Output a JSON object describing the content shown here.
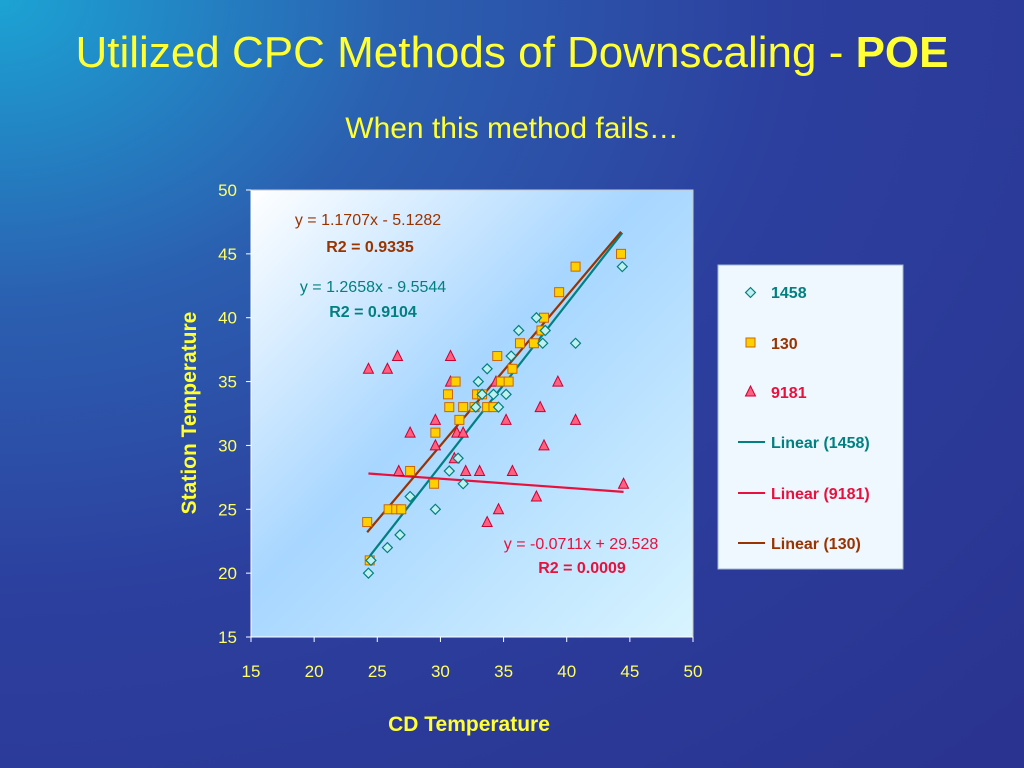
{
  "slide": {
    "title_main": "Utilized CPC Methods of Downscaling - ",
    "title_bold": "POE",
    "subtitle": "When this method fails…"
  },
  "colors": {
    "title": "#ffff33",
    "s1458": "#008080",
    "s130": "#993300",
    "s9181": "#e8103c",
    "plot_bg_start": "#ffffff",
    "plot_bg_end": "#9fd4ff",
    "legend_bg": "#f0f8ff"
  },
  "chart_data": {
    "type": "scatter",
    "xlabel": "CD Temperature",
    "ylabel": "Station Temperature",
    "xlim": [
      15,
      50
    ],
    "ylim": [
      15,
      50
    ],
    "x_ticks": [
      15,
      20,
      25,
      30,
      35,
      40,
      45,
      50
    ],
    "y_ticks": [
      15,
      20,
      25,
      30,
      35,
      40,
      45,
      50
    ],
    "grid": false,
    "legend_position": "right",
    "series": [
      {
        "name": "1458",
        "marker": "diamond",
        "color": "#008080",
        "points": [
          [
            24.3,
            20
          ],
          [
            24.5,
            21
          ],
          [
            25.8,
            22
          ],
          [
            26.8,
            23
          ],
          [
            27.6,
            26
          ],
          [
            29.6,
            25
          ],
          [
            30.7,
            28
          ],
          [
            31.4,
            29
          ],
          [
            31.8,
            27
          ],
          [
            32.8,
            33
          ],
          [
            33.0,
            35
          ],
          [
            33.3,
            34
          ],
          [
            33.7,
            36
          ],
          [
            34.2,
            34
          ],
          [
            34.6,
            33
          ],
          [
            35.2,
            34
          ],
          [
            35.6,
            37
          ],
          [
            36.2,
            39
          ],
          [
            37.6,
            40
          ],
          [
            38.1,
            38
          ],
          [
            38.3,
            39
          ],
          [
            40.7,
            38
          ],
          [
            44.4,
            44
          ]
        ]
      },
      {
        "name": "130",
        "marker": "square",
        "color": "#ffb000",
        "points": [
          [
            24.2,
            24
          ],
          [
            24.4,
            21
          ],
          [
            25.9,
            25
          ],
          [
            26.5,
            25
          ],
          [
            26.9,
            25
          ],
          [
            27.6,
            28
          ],
          [
            29.5,
            27
          ],
          [
            29.6,
            31
          ],
          [
            30.6,
            34
          ],
          [
            30.7,
            33
          ],
          [
            31.2,
            35
          ],
          [
            31.5,
            32
          ],
          [
            31.8,
            33
          ],
          [
            32.7,
            33
          ],
          [
            32.9,
            34
          ],
          [
            33.3,
            34
          ],
          [
            33.7,
            33
          ],
          [
            34.2,
            33
          ],
          [
            34.5,
            37
          ],
          [
            34.8,
            35
          ],
          [
            35.4,
            35
          ],
          [
            35.7,
            36
          ],
          [
            36.3,
            38
          ],
          [
            37.4,
            38
          ],
          [
            38.0,
            39
          ],
          [
            38.2,
            40
          ],
          [
            39.4,
            42
          ],
          [
            40.7,
            44
          ],
          [
            44.3,
            45
          ]
        ]
      },
      {
        "name": "9181",
        "marker": "triangle",
        "color": "#ff4060",
        "points": [
          [
            24.3,
            36
          ],
          [
            25.8,
            36
          ],
          [
            26.6,
            37
          ],
          [
            26.7,
            28
          ],
          [
            27.6,
            31
          ],
          [
            29.6,
            30
          ],
          [
            29.6,
            32
          ],
          [
            30.8,
            37
          ],
          [
            30.8,
            35
          ],
          [
            31.1,
            29
          ],
          [
            31.3,
            31
          ],
          [
            31.8,
            31
          ],
          [
            32.0,
            28
          ],
          [
            33.1,
            28
          ],
          [
            33.7,
            24
          ],
          [
            34.4,
            35
          ],
          [
            34.6,
            25
          ],
          [
            35.2,
            32
          ],
          [
            35.7,
            28
          ],
          [
            37.6,
            26
          ],
          [
            37.9,
            33
          ],
          [
            38.2,
            30
          ],
          [
            39.3,
            35
          ],
          [
            40.7,
            32
          ],
          [
            44.5,
            27
          ]
        ]
      }
    ],
    "trendlines": [
      {
        "name": "Linear (1458)",
        "slope": 1.2658,
        "intercept": -9.5544,
        "x_range": [
          24.3,
          44.4
        ],
        "color": "#008080",
        "equation": "y = 1.2658x - 9.5544",
        "r2": "R2 = 0.9104"
      },
      {
        "name": "Linear (9181)",
        "slope": -0.0711,
        "intercept": 29.528,
        "x_range": [
          24.3,
          44.5
        ],
        "color": "#e8103c",
        "equation": "y = -0.0711x + 29.528",
        "r2": "R2 = 0.0009"
      },
      {
        "name": "Linear (130)",
        "slope": 1.1707,
        "intercept": -5.1282,
        "x_range": [
          24.2,
          44.3
        ],
        "color": "#993300",
        "equation": "y = 1.1707x - 5.1282",
        "r2": "R2 = 0.9335"
      }
    ],
    "legend": [
      "1458",
      "130",
      "9181",
      "Linear (1458)",
      "Linear (9181)",
      "Linear (130)"
    ]
  }
}
